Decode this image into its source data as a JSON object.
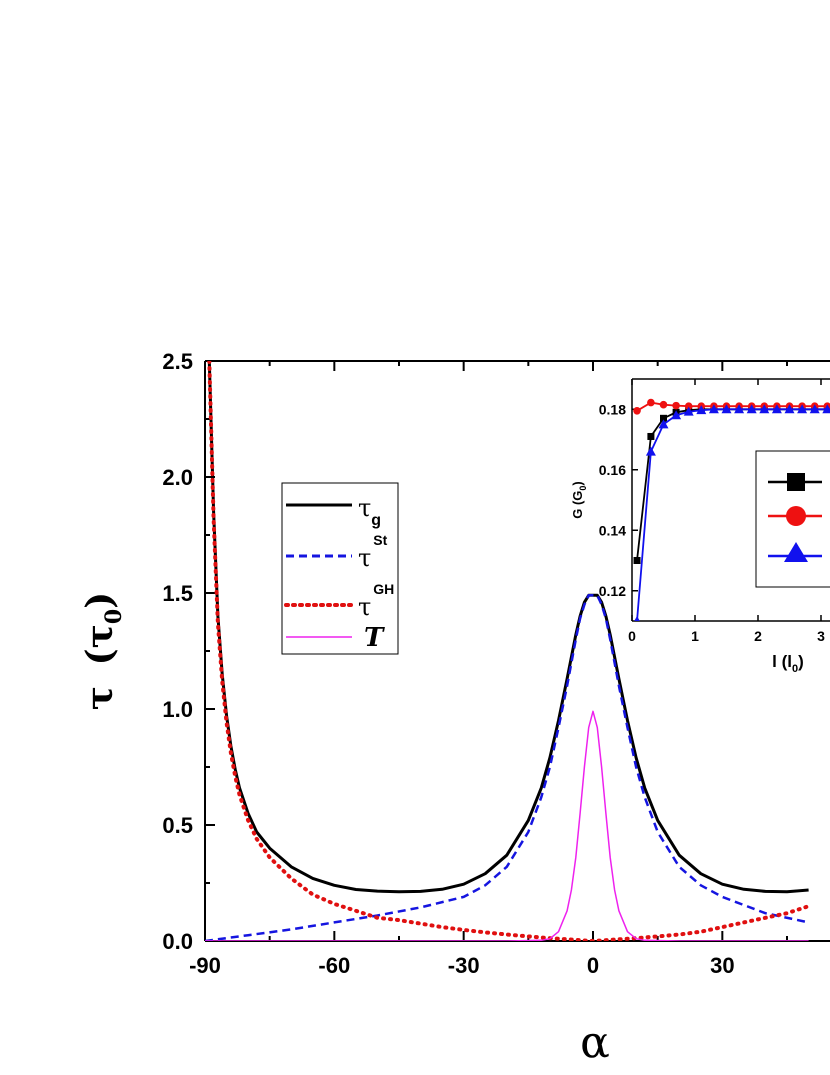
{
  "chart_data": [
    {
      "type": "line",
      "xlabel": "α",
      "ylabel_symbol": "τ",
      "ylabel_unit_symbol": "τ",
      "ylabel_unit_sub": "0",
      "xlim": [
        -90,
        50
      ],
      "ylim": [
        0,
        2.5
      ],
      "xticks": [
        -90,
        -60,
        -30,
        0,
        30
      ],
      "xtick_labels": [
        "-90",
        "-60",
        "-30",
        "0",
        "30"
      ],
      "yticks": [
        0,
        0.5,
        1.0,
        1.5,
        2.0,
        2.5
      ],
      "ytick_labels": [
        "0.0",
        "0.5",
        "1.0",
        "1.5",
        "2.0",
        "2.5"
      ],
      "legend": {
        "placement": "upper-left",
        "entries": [
          {
            "base": "τ",
            "sub": "g",
            "sup": "",
            "italic": false
          },
          {
            "base": "τ",
            "sub": "",
            "sup": "St",
            "italic": false
          },
          {
            "base": "τ",
            "sub": "",
            "sup": "GH",
            "italic": false
          },
          {
            "base": "T",
            "sub": "",
            "sup": "",
            "italic": true
          }
        ]
      },
      "series": [
        {
          "key": "tau_g",
          "color": "#000000",
          "style": "solid",
          "x": [
            -89,
            -88,
            -87,
            -86,
            -85,
            -84,
            -83,
            -82,
            -80,
            -78,
            -75,
            -70,
            -65,
            -60,
            -55,
            -50,
            -45,
            -40,
            -35,
            -30,
            -25,
            -20,
            -15,
            -12,
            -10,
            -8,
            -6,
            -4,
            -3,
            -2,
            -1,
            0,
            1,
            2,
            3,
            4,
            6,
            8,
            10,
            12,
            15,
            20,
            25,
            30,
            35,
            40,
            45,
            50
          ],
          "y": [
            2.5,
            1.85,
            1.4,
            1.15,
            0.97,
            0.84,
            0.74,
            0.66,
            0.55,
            0.47,
            0.4,
            0.32,
            0.27,
            0.24,
            0.222,
            0.215,
            0.212,
            0.214,
            0.223,
            0.245,
            0.29,
            0.37,
            0.52,
            0.66,
            0.79,
            0.95,
            1.13,
            1.32,
            1.4,
            1.46,
            1.49,
            1.49,
            1.49,
            1.46,
            1.4,
            1.32,
            1.13,
            0.95,
            0.79,
            0.66,
            0.52,
            0.37,
            0.29,
            0.245,
            0.223,
            0.214,
            0.212,
            0.22
          ]
        },
        {
          "key": "tau_St",
          "color": "#1515e0",
          "style": "dashed",
          "x": [
            -90,
            -80,
            -70,
            -60,
            -50,
            -40,
            -30,
            -25,
            -20,
            -15,
            -12,
            -10,
            -8,
            -6,
            -4,
            -3,
            -2,
            -1,
            0,
            1,
            2,
            3,
            4,
            6,
            8,
            10,
            12,
            15,
            20,
            25,
            30,
            40,
            50
          ],
          "y": [
            0.0,
            0.025,
            0.05,
            0.08,
            0.11,
            0.145,
            0.19,
            0.24,
            0.32,
            0.47,
            0.62,
            0.75,
            0.92,
            1.1,
            1.3,
            1.39,
            1.45,
            1.49,
            1.49,
            1.49,
            1.45,
            1.39,
            1.3,
            1.1,
            0.92,
            0.75,
            0.62,
            0.47,
            0.32,
            0.24,
            0.19,
            0.12,
            0.08
          ]
        },
        {
          "key": "tau_GH",
          "color": "#e01010",
          "style": "dotted",
          "x": [
            -89,
            -88,
            -87,
            -86,
            -85,
            -84,
            -83,
            -82,
            -80,
            -78,
            -75,
            -70,
            -65,
            -60,
            -55,
            -50,
            -45,
            -40,
            -35,
            -30,
            -25,
            -20,
            -15,
            -10,
            -5,
            -2,
            0,
            2,
            5,
            10,
            15,
            20,
            25,
            30,
            35,
            40,
            45,
            50
          ],
          "y": [
            2.5,
            1.82,
            1.37,
            1.12,
            0.94,
            0.81,
            0.71,
            0.63,
            0.52,
            0.44,
            0.36,
            0.27,
            0.2,
            0.16,
            0.13,
            0.1,
            0.09,
            0.075,
            0.06,
            0.048,
            0.037,
            0.028,
            0.02,
            0.012,
            0.006,
            0.002,
            0.0,
            0.002,
            0.006,
            0.012,
            0.02,
            0.028,
            0.04,
            0.06,
            0.08,
            0.1,
            0.12,
            0.15
          ]
        },
        {
          "key": "T",
          "color": "#ee22ee",
          "style": "solid-thin",
          "x": [
            -90,
            -20,
            -12,
            -10,
            -8,
            -6,
            -5,
            -4,
            -3,
            -2,
            -1,
            0,
            1,
            2,
            3,
            4,
            5,
            6,
            8,
            10,
            12,
            20,
            50
          ],
          "y": [
            0.0,
            0.0,
            0.003,
            0.01,
            0.04,
            0.13,
            0.22,
            0.36,
            0.55,
            0.75,
            0.92,
            0.99,
            0.92,
            0.75,
            0.55,
            0.36,
            0.22,
            0.13,
            0.04,
            0.01,
            0.003,
            0.0,
            0.0
          ]
        }
      ]
    },
    {
      "type": "line",
      "xlabel": "l (l",
      "xlabel_sub": "0",
      "xlabel_end": ")",
      "ylabel": "G (G",
      "ylabel_sub": "0",
      "ylabel_end": ")",
      "xlim": [
        0,
        3.2
      ],
      "ylim": [
        0.11,
        0.19
      ],
      "xticks": [
        0,
        1,
        2,
        3
      ],
      "xtick_labels": [
        "0",
        "1",
        "2",
        "3"
      ],
      "yticks": [
        0.12,
        0.14,
        0.16,
        0.18
      ],
      "ytick_labels": [
        "0.12",
        "0.14",
        "0.16",
        "0.18"
      ],
      "legend": {
        "placement": "right"
      },
      "series": [
        {
          "key": "black-squares",
          "color": "#000000",
          "marker": "square",
          "x": [
            0.08,
            0.3,
            0.5,
            0.7,
            0.9,
            1.1,
            1.3,
            1.5,
            1.7,
            1.9,
            2.1,
            2.3,
            2.5,
            2.7,
            2.9,
            3.1,
            3.3
          ],
          "y": [
            0.13,
            0.171,
            0.177,
            0.179,
            0.1797,
            0.18,
            0.18,
            0.18,
            0.18,
            0.18,
            0.18,
            0.18,
            0.18,
            0.18,
            0.18,
            0.18,
            0.18
          ]
        },
        {
          "key": "red-circles",
          "color": "#ee1111",
          "marker": "circle",
          "x": [
            0.08,
            0.3,
            0.5,
            0.7,
            0.9,
            1.1,
            1.3,
            1.5,
            1.7,
            1.9,
            2.1,
            2.3,
            2.5,
            2.7,
            2.9,
            3.1,
            3.3
          ],
          "y": [
            0.1795,
            0.1822,
            0.1815,
            0.1812,
            0.181,
            0.181,
            0.181,
            0.181,
            0.181,
            0.181,
            0.181,
            0.181,
            0.181,
            0.181,
            0.181,
            0.181,
            0.181
          ]
        },
        {
          "key": "blue-triangles",
          "color": "#1111ee",
          "marker": "triangle",
          "x": [
            0.08,
            0.3,
            0.5,
            0.7,
            0.9,
            1.1,
            1.3,
            1.5,
            1.7,
            1.9,
            2.1,
            2.3,
            2.5,
            2.7,
            2.9,
            3.1,
            3.3
          ],
          "y": [
            0.11,
            0.166,
            0.175,
            0.178,
            0.1792,
            0.1797,
            0.18,
            0.18,
            0.18,
            0.18,
            0.18,
            0.18,
            0.18,
            0.18,
            0.18,
            0.18,
            0.18
          ]
        }
      ]
    }
  ]
}
